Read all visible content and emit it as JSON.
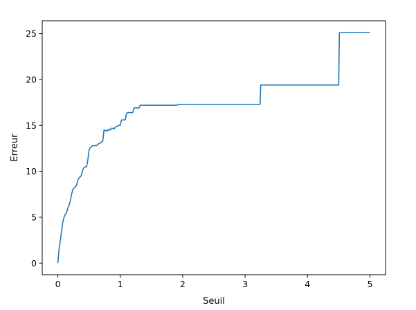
{
  "chart_data": {
    "type": "line",
    "title": "",
    "xlabel": "Seuil",
    "ylabel": "Erreur",
    "xlim": [
      -0.25,
      5.25
    ],
    "ylim": [
      -1.26,
      26.4
    ],
    "xticks": [
      0,
      1,
      2,
      3,
      4,
      5
    ],
    "yticks": [
      0,
      5,
      10,
      15,
      20,
      25
    ],
    "grid": false,
    "legend": "none",
    "series": [
      {
        "color": "#1f77b4",
        "x": [
          0,
          0.01,
          0.02,
          0.04,
          0.06,
          0.08,
          0.1,
          0.12,
          0.14,
          0.16,
          0.18,
          0.2,
          0.22,
          0.24,
          0.26,
          0.28,
          0.3,
          0.33,
          0.36,
          0.38,
          0.4,
          0.42,
          0.44,
          0.46,
          0.48,
          0.5,
          0.52,
          0.54,
          0.56,
          0.6,
          0.62,
          0.65,
          0.68,
          0.72,
          0.74,
          0.76,
          0.78,
          0.8,
          0.82,
          0.84,
          0.86,
          0.88,
          0.9,
          0.92,
          0.95,
          0.97,
          1.0,
          1.02,
          1.05,
          1.08,
          1.1,
          1.12,
          1.15,
          1.2,
          1.22,
          1.25,
          1.3,
          1.32,
          1.35,
          1.4,
          1.45,
          1.5,
          1.55,
          1.6,
          1.65,
          1.9,
          1.95,
          2.0,
          2.5,
          3.0,
          3.24,
          3.25,
          3.6,
          4.0,
          4.5,
          4.51,
          4.8,
          5.0
        ],
        "y": [
          0,
          0.8,
          1.5,
          2.5,
          3.5,
          4.5,
          5.0,
          5.3,
          5.5,
          6.0,
          6.3,
          6.8,
          7.5,
          8.0,
          8.2,
          8.3,
          8.5,
          9.2,
          9.4,
          9.6,
          10.2,
          10.4,
          10.5,
          10.5,
          11.2,
          12.3,
          12.6,
          12.7,
          12.8,
          12.8,
          12.8,
          13.0,
          13.1,
          13.3,
          14.5,
          14.4,
          14.5,
          14.4,
          14.6,
          14.5,
          14.7,
          14.7,
          14.6,
          14.8,
          14.9,
          15.0,
          15.0,
          15.6,
          15.6,
          15.6,
          16.3,
          16.4,
          16.4,
          16.4,
          16.9,
          16.9,
          16.9,
          17.2,
          17.2,
          17.2,
          17.2,
          17.2,
          17.2,
          17.2,
          17.2,
          17.2,
          17.3,
          17.3,
          17.3,
          17.3,
          17.3,
          19.4,
          19.4,
          19.4,
          19.4,
          25.1,
          25.1,
          25.1
        ]
      }
    ]
  }
}
